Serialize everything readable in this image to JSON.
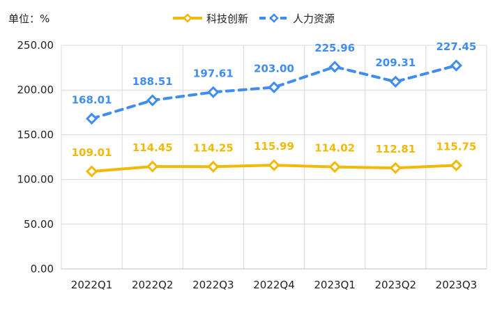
{
  "chart_data": {
    "type": "line",
    "unit_label": "单位：%",
    "categories": [
      "2022Q1",
      "2022Q2",
      "2022Q3",
      "2022Q4",
      "2023Q1",
      "2023Q2",
      "2023Q3"
    ],
    "series": [
      {
        "name": "科技创新",
        "values": [
          109.01,
          114.45,
          114.25,
          115.99,
          114.02,
          112.81,
          115.75
        ],
        "labels": [
          "109.01",
          "114.45",
          "114.25",
          "115.99",
          "114.02",
          "112.81",
          "115.75"
        ],
        "color": "#f2b90a",
        "line_style": "solid",
        "marker": "diamond"
      },
      {
        "name": "人力资源",
        "values": [
          168.01,
          188.51,
          197.61,
          203.0,
          225.96,
          209.31,
          227.45
        ],
        "labels": [
          "168.01",
          "188.51",
          "197.61",
          "203.00",
          "225.96",
          "209.31",
          "227.45"
        ],
        "color": "#3f8df0",
        "line_style": "dashed",
        "marker": "diamond"
      }
    ],
    "ylim": [
      0,
      250
    ],
    "yticks": [
      0,
      50,
      100,
      150,
      200,
      250
    ],
    "ytick_labels": [
      "0.00",
      "50.00",
      "100.00",
      "150.00",
      "200.00",
      "250.00"
    ],
    "grid": true,
    "legend_position": "top-center",
    "xlabel": "",
    "ylabel": ""
  }
}
